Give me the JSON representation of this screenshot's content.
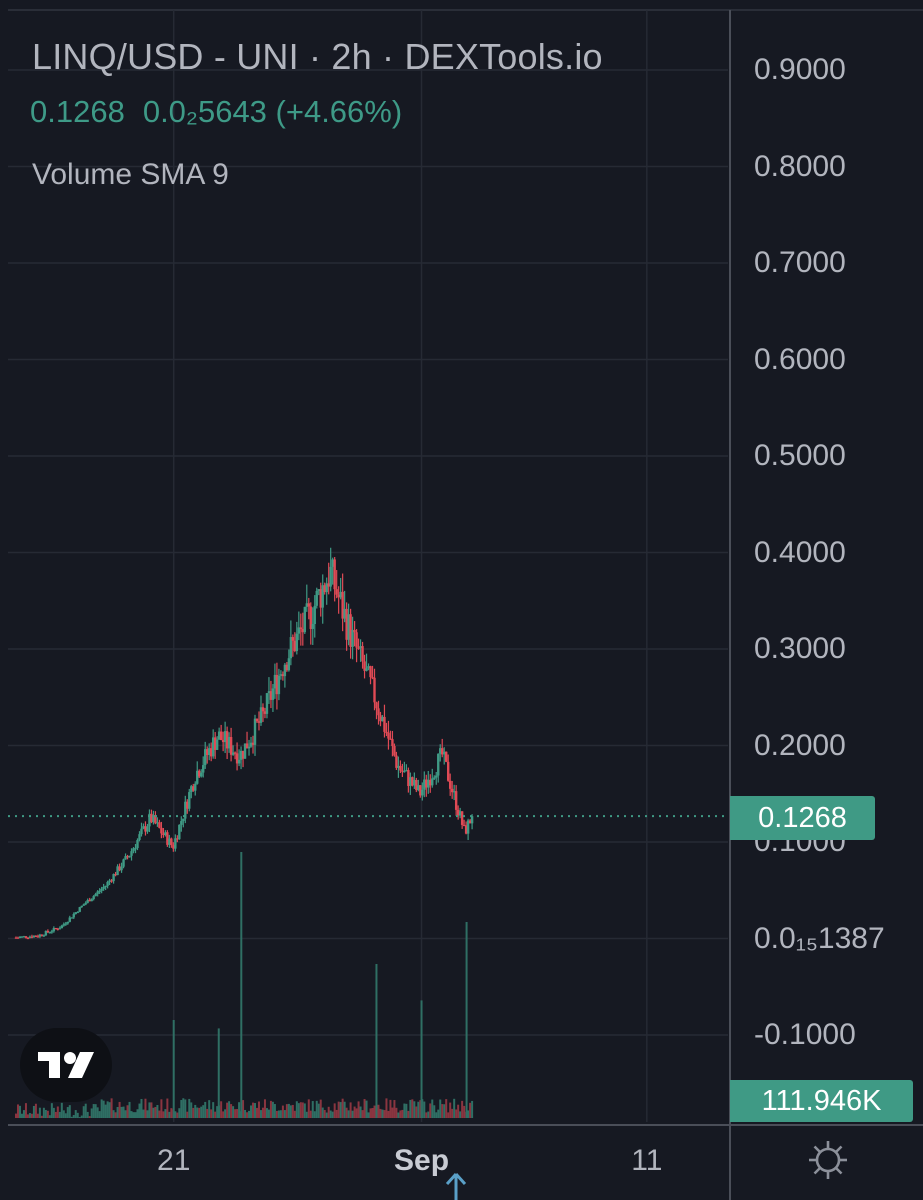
{
  "header": {
    "title": "LINQ/USD - UNI · 2h · DEXTools.io",
    "price": "0.1268",
    "change": "0.0₂5643 (+4.66%)",
    "indicator": "Volume SMA 9"
  },
  "colors": {
    "background": "#161922",
    "up": "#3f9a85",
    "down": "#e04a55",
    "grid": "#262a34",
    "axis_text": "#b2b5be",
    "price_line": "#3f9a85"
  },
  "price_tag": "0.1268",
  "volume_tag": "111.946K",
  "icons": {
    "logo": "tradingview-logo-icon",
    "settings": "gear-icon",
    "scroll": "arrow-up-icon"
  },
  "chart_data": {
    "type": "candlestick",
    "symbol": "LINQ/USD",
    "interval": "2h",
    "ylim": [
      -0.15,
      0.95
    ],
    "y_ticks": [
      {
        "value": 0.9,
        "label": "0.9000"
      },
      {
        "value": 0.8,
        "label": "0.8000"
      },
      {
        "value": 0.7,
        "label": "0.7000"
      },
      {
        "value": 0.6,
        "label": "0.6000"
      },
      {
        "value": 0.5,
        "label": "0.5000"
      },
      {
        "value": 0.4,
        "label": "0.4000"
      },
      {
        "value": 0.3,
        "label": "0.3000"
      },
      {
        "value": 0.2,
        "label": "0.2000"
      },
      {
        "value": 0.1,
        "label": "0.1000"
      },
      {
        "value": 0.0,
        "label": "0.0₁₅1387"
      },
      {
        "value": -0.1,
        "label": "-0.1000"
      }
    ],
    "x_ticks": [
      {
        "label": "21",
        "date": "2023-08-21",
        "bold": false
      },
      {
        "label": "Sep",
        "date": "2023-09-01",
        "bold": true
      },
      {
        "label": "11",
        "date": "2023-09-11",
        "bold": false
      }
    ],
    "xlim": [
      "2023-08-14",
      "2023-09-14"
    ],
    "last_price": 0.1268,
    "last_volume": 111946,
    "price_path": [
      [
        "2023-08-14",
        0.001
      ],
      [
        "2023-08-15",
        0.003
      ],
      [
        "2023-08-16",
        0.012
      ],
      [
        "2023-08-17",
        0.035
      ],
      [
        "2023-08-18",
        0.055
      ],
      [
        "2023-08-19",
        0.085
      ],
      [
        "2023-08-20",
        0.125
      ],
      [
        "2023-08-21",
        0.095
      ],
      [
        "2023-08-22",
        0.17
      ],
      [
        "2023-08-23",
        0.21
      ],
      [
        "2023-08-24",
        0.19
      ],
      [
        "2023-08-25",
        0.23
      ],
      [
        "2023-08-26",
        0.29
      ],
      [
        "2023-08-27",
        0.33
      ],
      [
        "2023-08-28",
        0.38
      ],
      [
        "2023-08-29",
        0.31
      ],
      [
        "2023-08-30",
        0.25
      ],
      [
        "2023-08-31",
        0.18
      ],
      [
        "2023-09-01",
        0.15
      ],
      [
        "2023-09-02",
        0.19
      ],
      [
        "2023-09-03",
        0.11
      ],
      [
        "2023-09-03T08:00",
        0.1268
      ]
    ],
    "volume_spikes": [
      {
        "date": "2023-08-23",
        "value": 0.32
      },
      {
        "date": "2023-08-24",
        "value": 0.95
      },
      {
        "date": "2023-08-21",
        "value": 0.35
      },
      {
        "date": "2023-08-30",
        "value": 0.55
      },
      {
        "date": "2023-09-01",
        "value": 0.42
      },
      {
        "date": "2023-09-03",
        "value": 0.7
      }
    ]
  }
}
